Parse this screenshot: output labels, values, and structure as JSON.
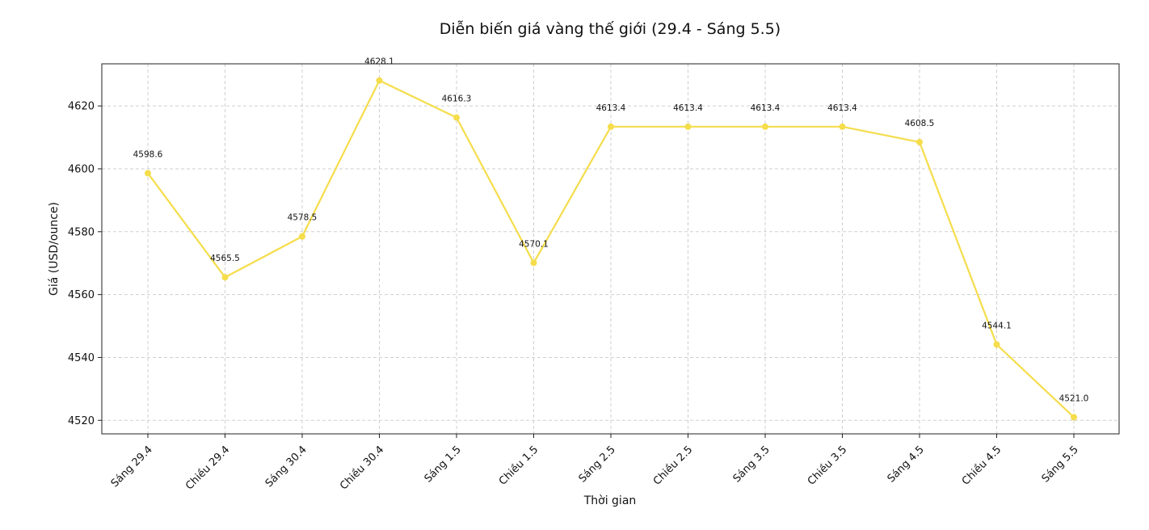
{
  "chart_data": {
    "type": "line",
    "title": "Diễn biến giá vàng thế giới (29.4 - Sáng 5.5)",
    "xlabel": "Thời gian",
    "ylabel": "Giá (USD/ounce)",
    "categories": [
      "Sáng 29.4",
      "Chiều 29.4",
      "Sáng 30.4",
      "Chiều 30.4",
      "Sáng 1.5",
      "Chiều 1.5",
      "Sáng 2.5",
      "Chiều 2.5",
      "Sáng 3.5",
      "Chiều 3.5",
      "Sáng 4.5",
      "Chiều 4.5",
      "Sáng 5.5"
    ],
    "series": [
      {
        "values": [
          4598.6,
          4565.5,
          4578.5,
          4628.1,
          4616.3,
          4570.1,
          4613.4,
          4613.4,
          4613.4,
          4613.4,
          4608.5,
          4544.1,
          4521.0
        ],
        "labels": [
          "4598.6",
          "4565.5",
          "4578.5",
          "4628.1",
          "4616.3",
          "4570.1",
          "4613.4",
          "4613.4",
          "4613.4",
          "4613.4",
          "4608.5",
          "4544.1",
          "4521.0"
        ],
        "color": "#f5dd4b"
      }
    ],
    "ylim": [
      4515.7,
      4633.4
    ],
    "yticks": [
      4520,
      4540,
      4560,
      4580,
      4600,
      4620
    ],
    "ytick_labels": [
      "4520",
      "4540",
      "4560",
      "4580",
      "4600",
      "4620"
    ],
    "grid": true,
    "legend": "none"
  }
}
